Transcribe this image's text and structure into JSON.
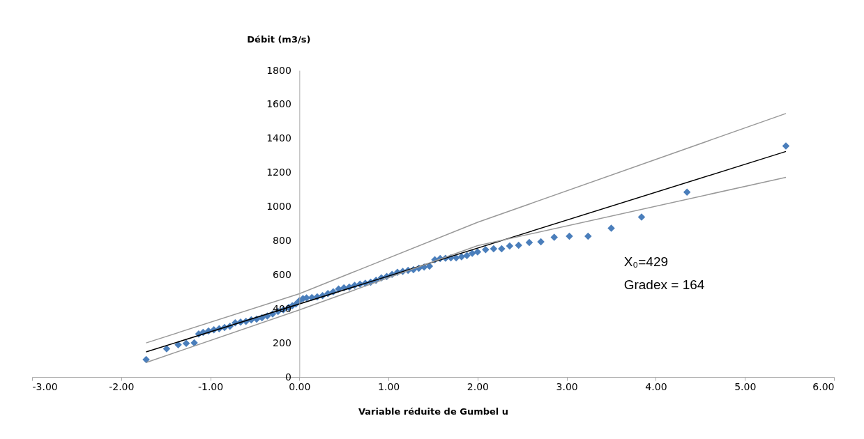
{
  "chart_data": {
    "type": "scatter",
    "xlabel": "Variable réduite de Gumbel u",
    "ylabel": "Débit (m3/s)",
    "xlim": [
      -3,
      6
    ],
    "xticks": [
      {
        "value": -3,
        "label": "-3.00"
      },
      {
        "value": -2,
        "label": "-2.00"
      },
      {
        "value": -1,
        "label": "-1.00"
      },
      {
        "value": 0,
        "label": "0.00"
      },
      {
        "value": 1,
        "label": "1.00"
      },
      {
        "value": 2,
        "label": "2.00"
      },
      {
        "value": 3,
        "label": "3.00"
      },
      {
        "value": 4,
        "label": "4.00"
      },
      {
        "value": 5,
        "label": "5.00"
      },
      {
        "value": 6,
        "label": "6.00"
      }
    ],
    "ylim": [
      0,
      1800
    ],
    "yticks": [
      0,
      200,
      400,
      600,
      800,
      1000,
      1200,
      1400,
      1600,
      1800
    ],
    "grid": false,
    "annotations": [
      "X₀=429",
      "Gradex = 164"
    ],
    "series": [
      {
        "color": "#4a7ebb",
        "marker": "diamond",
        "x": [
          -1.72,
          -1.49,
          -1.36,
          -1.27,
          -1.18,
          -1.13,
          -1.08,
          -1.02,
          -0.96,
          -0.9,
          -0.84,
          -0.78,
          -0.72,
          -0.66,
          -0.6,
          -0.54,
          -0.48,
          -0.42,
          -0.36,
          -0.3,
          -0.24,
          -0.18,
          -0.12,
          -0.08,
          -0.04,
          0.0,
          0.04,
          0.08,
          0.14,
          0.2,
          0.26,
          0.32,
          0.38,
          0.44,
          0.5,
          0.56,
          0.62,
          0.68,
          0.74,
          0.8,
          0.86,
          0.92,
          0.98,
          1.04,
          1.1,
          1.16,
          1.22,
          1.28,
          1.34,
          1.4,
          1.46,
          1.52,
          1.58,
          1.64,
          1.7,
          1.76,
          1.82,
          1.88,
          1.94,
          2.0,
          2.09,
          2.18,
          2.27,
          2.36,
          2.46,
          2.58,
          2.71,
          2.86,
          3.03,
          3.24,
          3.5,
          3.84,
          4.35,
          5.46
        ],
        "values": [
          102,
          166,
          189,
          197,
          200,
          253,
          262,
          270,
          277,
          283,
          290,
          298,
          318,
          322,
          326,
          335,
          340,
          348,
          358,
          370,
          385,
          395,
          408,
          418,
          428,
          448,
          460,
          464,
          466,
          470,
          478,
          490,
          500,
          516,
          524,
          528,
          538,
          545,
          550,
          556,
          568,
          582,
          590,
          602,
          615,
          620,
          626,
          630,
          638,
          645,
          650,
          688,
          695,
          697,
          700,
          700,
          706,
          713,
          726,
          734,
          748,
          753,
          753,
          769,
          773,
          790,
          794,
          820,
          826,
          826,
          873,
          939,
          1085,
          1356
        ]
      },
      {
        "type": "line",
        "color": "#000000",
        "x": [
          -1.72,
          5.46
        ],
        "values": [
          147,
          1324
        ]
      },
      {
        "type": "line",
        "color": "#999999",
        "x": [
          -1.72,
          0,
          2,
          5.46
        ],
        "values": [
          200,
          489,
          908,
          1547
        ]
      },
      {
        "type": "line",
        "color": "#999999",
        "x": [
          -1.72,
          0,
          2,
          5.46
        ],
        "values": [
          85,
          394,
          771,
          1172
        ]
      }
    ]
  }
}
